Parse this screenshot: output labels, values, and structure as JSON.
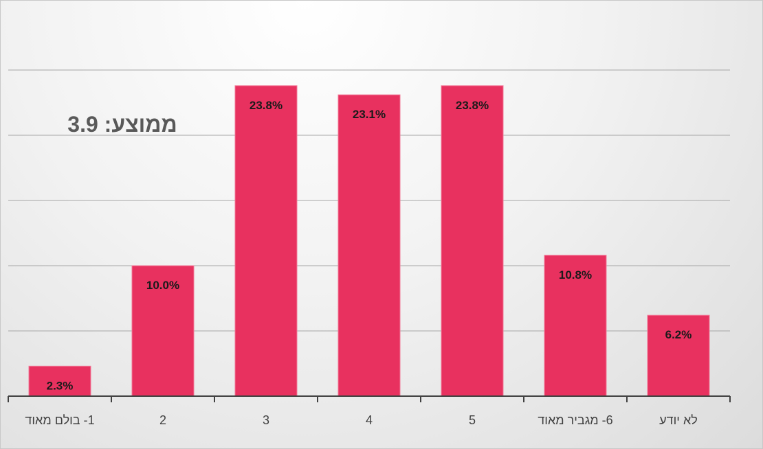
{
  "chart_data": {
    "type": "bar",
    "categories": [
      "1- בולם מאוד",
      "2",
      "3",
      "4",
      "5",
      "6- מגביר מאוד",
      "לא יודע"
    ],
    "values": [
      2.3,
      10.0,
      23.8,
      23.1,
      23.8,
      10.8,
      6.2
    ],
    "data_labels": [
      "2.3%",
      "10.0%",
      "23.8%",
      "23.1%",
      "23.8%",
      "10.8%",
      "6.2%"
    ],
    "ylim": [
      0,
      25
    ],
    "grid": true,
    "bar_color": "#e8315f",
    "annotation": "ממוצע: 3.9"
  }
}
